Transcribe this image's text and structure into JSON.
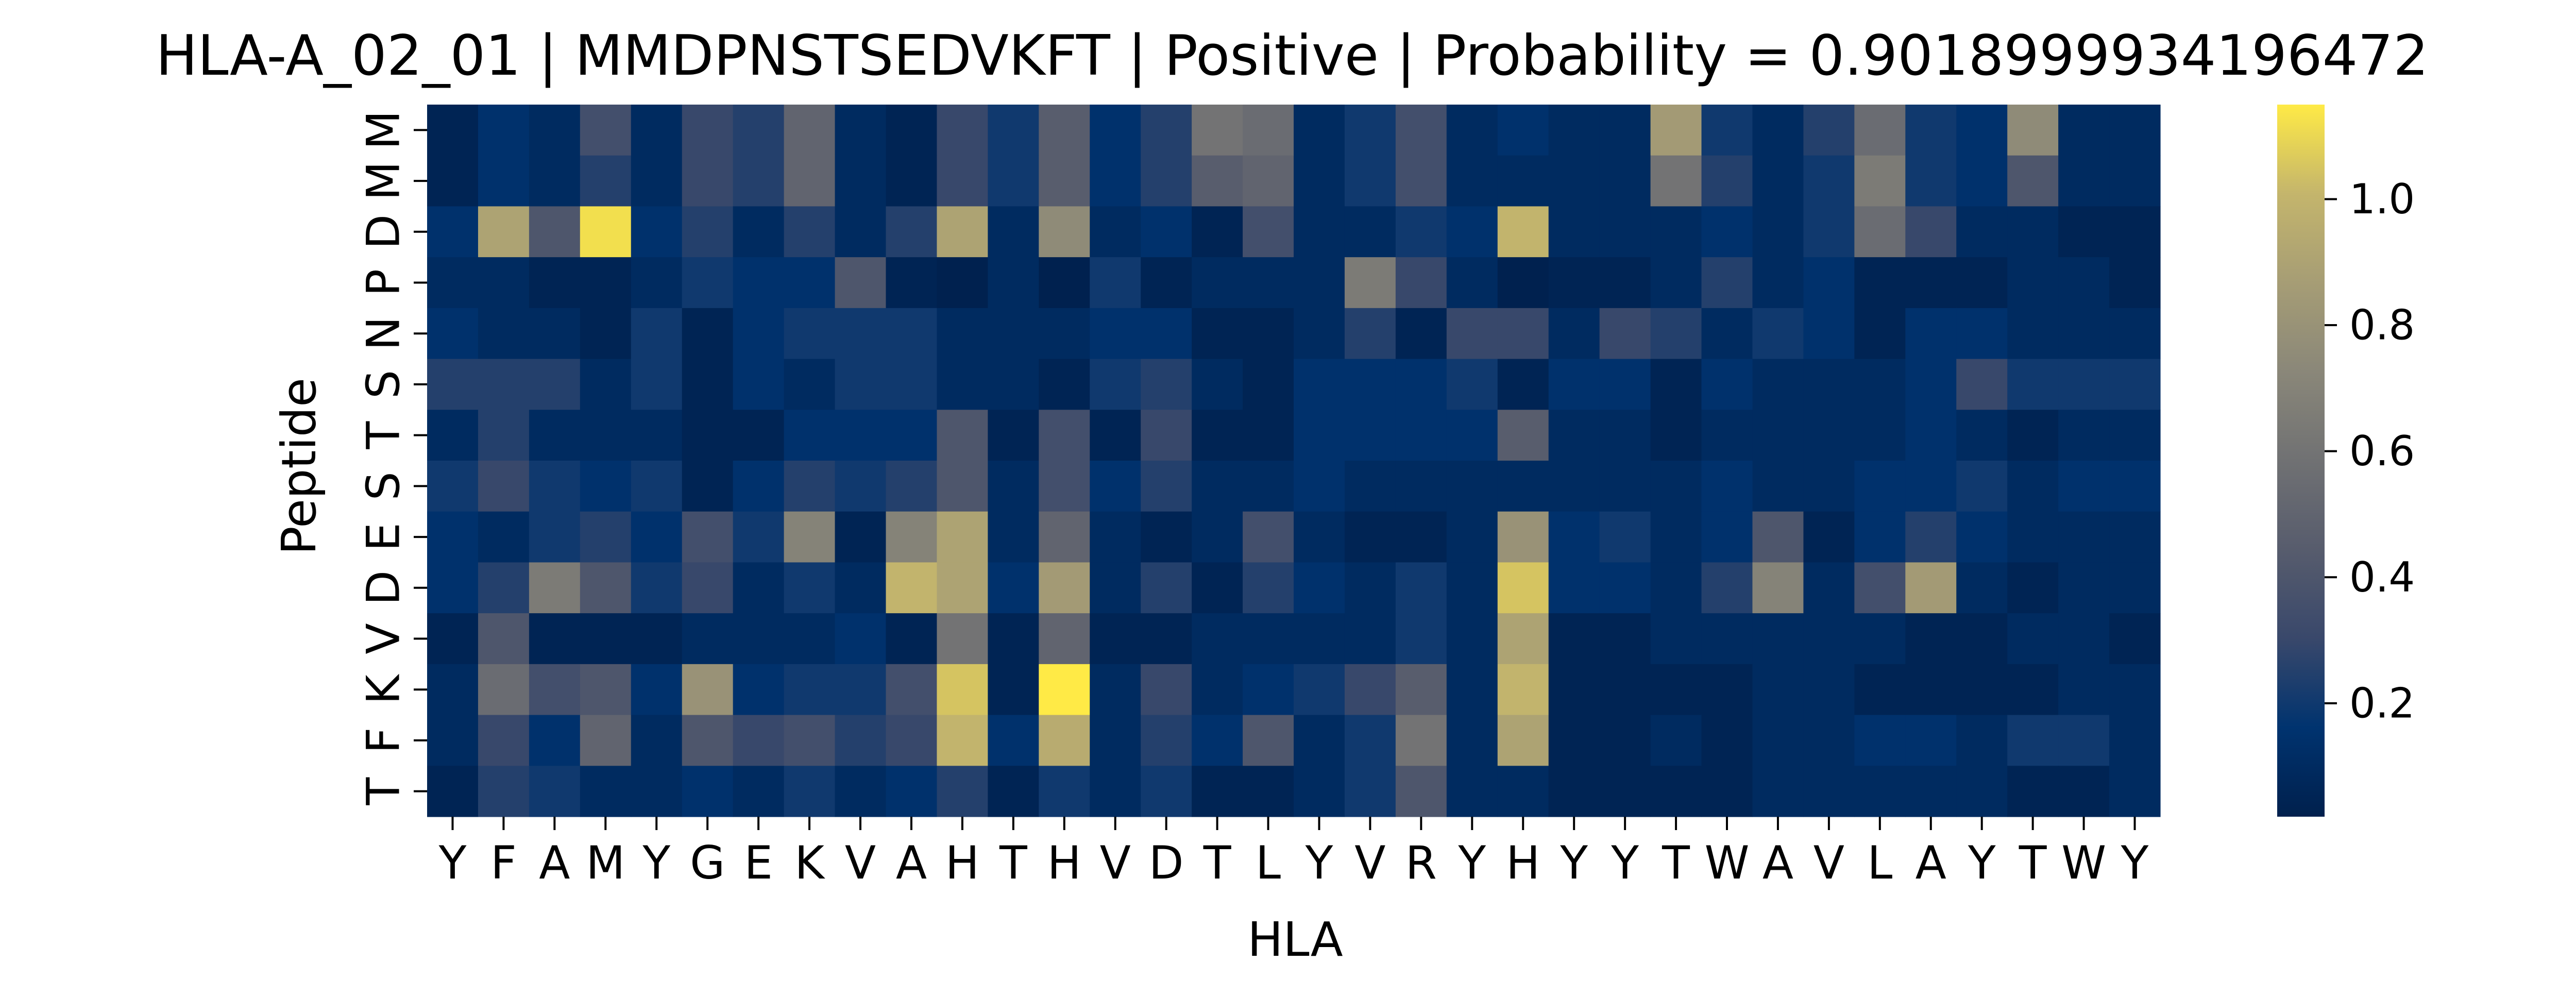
{
  "chart_data": {
    "type": "heatmap",
    "title": "HLA-A_02_01 | MMDPNSTSEDVKFT | Positive | Probability = 0.9018999934196472",
    "xlabel": "HLA",
    "ylabel": "Peptide",
    "x_categories": [
      "Y",
      "F",
      "A",
      "M",
      "Y",
      "G",
      "E",
      "K",
      "V",
      "A",
      "H",
      "T",
      "H",
      "V",
      "D",
      "T",
      "L",
      "Y",
      "V",
      "R",
      "Y",
      "H",
      "Y",
      "Y",
      "T",
      "W",
      "A",
      "V",
      "L",
      "A",
      "Y",
      "T",
      "W",
      "Y"
    ],
    "y_categories": [
      "M",
      "M",
      "D",
      "P",
      "N",
      "S",
      "T",
      "S",
      "E",
      "D",
      "V",
      "K",
      "F",
      "T"
    ],
    "colormap": "cividis",
    "color_range": [
      0.02,
      1.15
    ],
    "colorbar_ticks": [
      0.2,
      0.4,
      0.6,
      0.8,
      1.0
    ],
    "colorbar_tick_labels": [
      "0.2",
      "0.4",
      "0.6",
      "0.8",
      "1.0"
    ],
    "values": [
      [
        0.05,
        0.15,
        0.1,
        0.35,
        0.1,
        0.3,
        0.25,
        0.5,
        0.1,
        0.05,
        0.3,
        0.2,
        0.45,
        0.15,
        0.25,
        0.6,
        0.55,
        0.1,
        0.2,
        0.35,
        0.1,
        0.15,
        0.1,
        0.1,
        0.85,
        0.2,
        0.1,
        0.25,
        0.55,
        0.2,
        0.15,
        0.75,
        0.1,
        0.1
      ],
      [
        0.05,
        0.15,
        0.1,
        0.25,
        0.1,
        0.3,
        0.25,
        0.5,
        0.1,
        0.05,
        0.3,
        0.2,
        0.45,
        0.15,
        0.25,
        0.45,
        0.5,
        0.1,
        0.2,
        0.35,
        0.1,
        0.1,
        0.1,
        0.1,
        0.6,
        0.25,
        0.1,
        0.2,
        0.65,
        0.2,
        0.15,
        0.4,
        0.1,
        0.1
      ],
      [
        0.15,
        0.9,
        0.4,
        1.12,
        0.15,
        0.25,
        0.1,
        0.25,
        0.1,
        0.25,
        0.9,
        0.1,
        0.75,
        0.1,
        0.15,
        0.05,
        0.35,
        0.1,
        0.1,
        0.2,
        0.15,
        1.0,
        0.1,
        0.1,
        0.1,
        0.15,
        0.1,
        0.2,
        0.55,
        0.3,
        0.1,
        0.1,
        0.05,
        0.05
      ],
      [
        0.1,
        0.1,
        0.05,
        0.05,
        0.1,
        0.2,
        0.15,
        0.15,
        0.4,
        0.05,
        0.03,
        0.1,
        0.03,
        0.2,
        0.05,
        0.1,
        0.1,
        0.1,
        0.65,
        0.3,
        0.1,
        0.03,
        0.05,
        0.05,
        0.1,
        0.25,
        0.1,
        0.15,
        0.05,
        0.05,
        0.05,
        0.1,
        0.1,
        0.05
      ],
      [
        0.15,
        0.1,
        0.1,
        0.05,
        0.2,
        0.05,
        0.15,
        0.2,
        0.2,
        0.2,
        0.1,
        0.1,
        0.1,
        0.15,
        0.15,
        0.05,
        0.05,
        0.1,
        0.25,
        0.05,
        0.3,
        0.3,
        0.1,
        0.3,
        0.25,
        0.1,
        0.2,
        0.15,
        0.05,
        0.15,
        0.15,
        0.1,
        0.1,
        0.1
      ],
      [
        0.25,
        0.25,
        0.25,
        0.1,
        0.2,
        0.05,
        0.15,
        0.1,
        0.2,
        0.2,
        0.1,
        0.1,
        0.05,
        0.2,
        0.25,
        0.1,
        0.05,
        0.15,
        0.15,
        0.15,
        0.2,
        0.05,
        0.15,
        0.15,
        0.05,
        0.15,
        0.1,
        0.1,
        0.1,
        0.15,
        0.3,
        0.2,
        0.2,
        0.2
      ],
      [
        0.1,
        0.25,
        0.1,
        0.1,
        0.1,
        0.05,
        0.05,
        0.15,
        0.15,
        0.15,
        0.4,
        0.05,
        0.35,
        0.05,
        0.3,
        0.05,
        0.05,
        0.15,
        0.15,
        0.15,
        0.15,
        0.45,
        0.1,
        0.1,
        0.05,
        0.1,
        0.1,
        0.1,
        0.1,
        0.15,
        0.1,
        0.05,
        0.1,
        0.1
      ],
      [
        0.2,
        0.3,
        0.2,
        0.15,
        0.2,
        0.05,
        0.15,
        0.25,
        0.2,
        0.25,
        0.4,
        0.1,
        0.35,
        0.15,
        0.25,
        0.1,
        0.1,
        0.15,
        0.1,
        0.1,
        0.1,
        0.1,
        0.1,
        0.1,
        0.1,
        0.15,
        0.1,
        0.1,
        0.15,
        0.15,
        0.2,
        0.1,
        0.15,
        0.15
      ],
      [
        0.15,
        0.1,
        0.2,
        0.25,
        0.15,
        0.35,
        0.2,
        0.7,
        0.05,
        0.7,
        0.9,
        0.1,
        0.5,
        0.1,
        0.05,
        0.1,
        0.35,
        0.1,
        0.05,
        0.05,
        0.1,
        0.8,
        0.15,
        0.2,
        0.1,
        0.15,
        0.4,
        0.05,
        0.15,
        0.25,
        0.15,
        0.1,
        0.1,
        0.1
      ],
      [
        0.15,
        0.25,
        0.65,
        0.4,
        0.2,
        0.3,
        0.1,
        0.2,
        0.1,
        1.0,
        0.9,
        0.15,
        0.85,
        0.1,
        0.25,
        0.05,
        0.25,
        0.15,
        0.1,
        0.2,
        0.1,
        1.05,
        0.15,
        0.15,
        0.1,
        0.25,
        0.7,
        0.1,
        0.35,
        0.85,
        0.1,
        0.05,
        0.1,
        0.1
      ],
      [
        0.05,
        0.4,
        0.05,
        0.05,
        0.05,
        0.1,
        0.1,
        0.1,
        0.15,
        0.05,
        0.6,
        0.05,
        0.5,
        0.05,
        0.05,
        0.1,
        0.1,
        0.1,
        0.1,
        0.2,
        0.1,
        0.9,
        0.05,
        0.05,
        0.1,
        0.1,
        0.1,
        0.1,
        0.1,
        0.05,
        0.05,
        0.1,
        0.1,
        0.05
      ],
      [
        0.1,
        0.55,
        0.35,
        0.4,
        0.15,
        0.8,
        0.15,
        0.2,
        0.2,
        0.35,
        1.05,
        0.05,
        1.15,
        0.1,
        0.3,
        0.1,
        0.15,
        0.2,
        0.3,
        0.45,
        0.1,
        1.0,
        0.05,
        0.05,
        0.05,
        0.05,
        0.1,
        0.1,
        0.05,
        0.05,
        0.05,
        0.05,
        0.1,
        0.1
      ],
      [
        0.1,
        0.3,
        0.15,
        0.5,
        0.1,
        0.4,
        0.3,
        0.35,
        0.25,
        0.3,
        1.0,
        0.15,
        0.95,
        0.1,
        0.25,
        0.15,
        0.4,
        0.1,
        0.2,
        0.6,
        0.1,
        0.9,
        0.05,
        0.05,
        0.1,
        0.05,
        0.1,
        0.1,
        0.15,
        0.15,
        0.1,
        0.2,
        0.2,
        0.1
      ],
      [
        0.05,
        0.25,
        0.2,
        0.1,
        0.1,
        0.15,
        0.1,
        0.2,
        0.1,
        0.15,
        0.25,
        0.05,
        0.2,
        0.1,
        0.2,
        0.05,
        0.05,
        0.1,
        0.2,
        0.4,
        0.1,
        0.1,
        0.05,
        0.05,
        0.05,
        0.05,
        0.1,
        0.1,
        0.1,
        0.1,
        0.1,
        0.05,
        0.05,
        0.1
      ]
    ]
  }
}
